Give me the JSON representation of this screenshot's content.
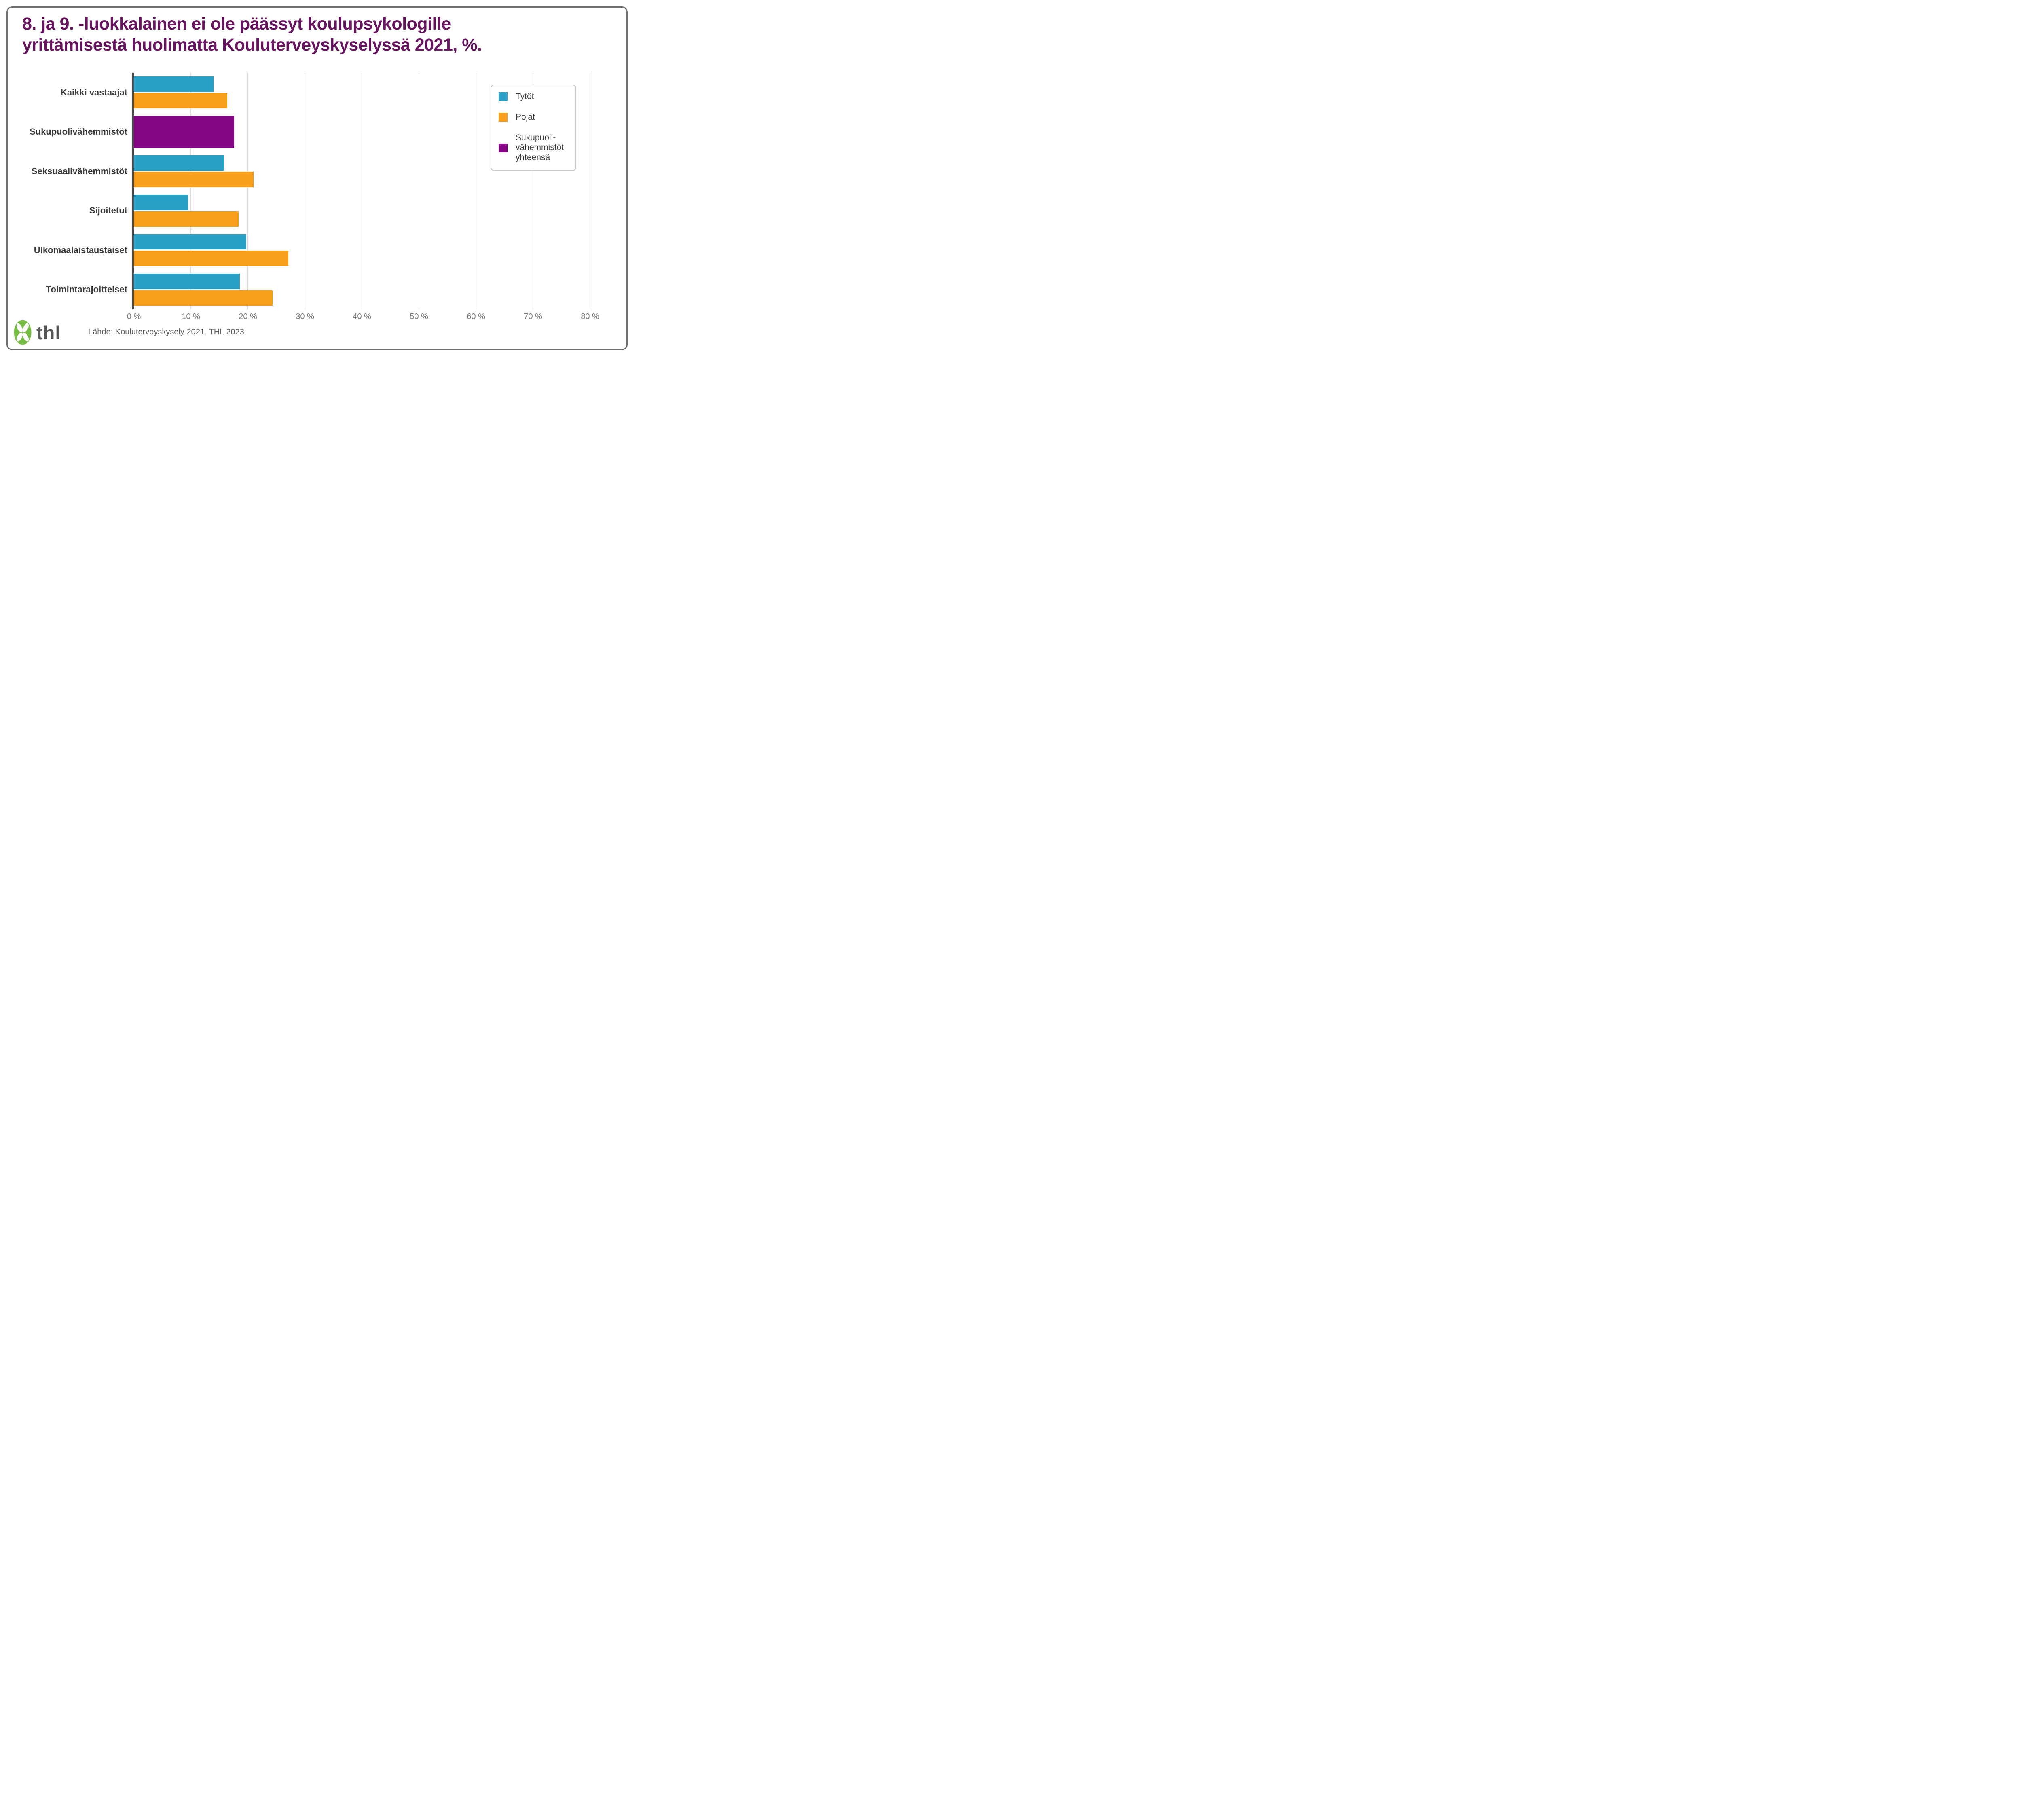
{
  "title_lines": [
    "8. ja 9. -luokkalainen ei ole päässyt koulupsykologille",
    "yrittämisestä huolimatta Kouluterveyskyselyssä 2021, %."
  ],
  "footer": {
    "source": "Lähde: Kouluterveyskysely 2021. THL 2023",
    "logo_text": "thl"
  },
  "icons": {
    "logo_clover": "thl-clover-icon"
  },
  "colors": {
    "title": "#67155f",
    "card_border": "#6d6d6d",
    "axis_line": "#4d4d4d",
    "gridline": "#dcdcdc",
    "category_label": "#3c3c3c",
    "tick_label": "#757575",
    "source_text": "#5a5a5a",
    "logo_green": "#77bc44",
    "logo_text": "#58585a",
    "legend_border": "#c8c8c8"
  },
  "chart_data": {
    "type": "bar",
    "orientation": "horizontal",
    "title": "8. ja 9. -luokkalainen ei ole päässyt koulupsykologille yrittämisestä huolimatta Kouluterveyskyselyssä 2021, %.",
    "categories": [
      "Kaikki vastaajat",
      "Sukupuolivähemmistöt",
      "Seksuaalivähemmistöt",
      "Sijoitetut",
      "Ulkomaalaistaustaiset",
      "Toimintarajoitteiset"
    ],
    "series": [
      {
        "name": "Tytöt",
        "color": "#2ba0c6",
        "values": [
          14.0,
          null,
          15.8,
          9.5,
          19.7,
          18.6
        ]
      },
      {
        "name": "Pojat",
        "color": "#f99e1b",
        "values": [
          16.4,
          null,
          21.0,
          18.4,
          27.1,
          24.3
        ]
      },
      {
        "name": "Sukupuolivähemmistöt yhteensä",
        "color": "#860786",
        "values": [
          null,
          17.6,
          null,
          null,
          null,
          null
        ]
      }
    ],
    "xlabel": "",
    "ylabel": "",
    "xlim": [
      0,
      80
    ],
    "xtick_step": 10,
    "xtick_suffix": " %",
    "grid": true,
    "legend_position": "top-right",
    "legend_labels": [
      "Tytöt",
      "Pojat",
      "Sukupuoli-\nvähemmistöt\nyhteensä"
    ]
  }
}
